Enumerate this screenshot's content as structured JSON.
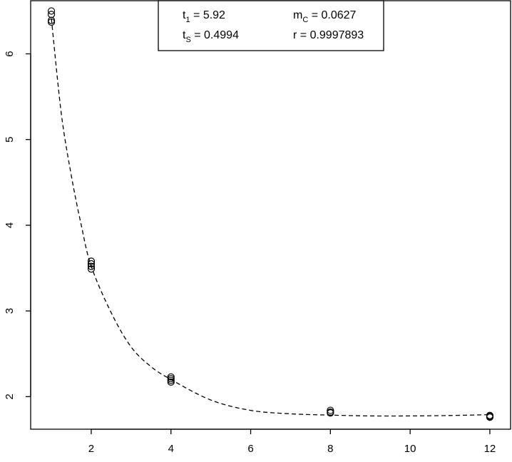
{
  "chart_data": {
    "type": "scatter",
    "title": "",
    "xlabel": "",
    "ylabel": "",
    "xlim": [
      0.48,
      12.52
    ],
    "ylim": [
      1.62,
      6.62
    ],
    "x_ticks": [
      2,
      4,
      6,
      8,
      10,
      12
    ],
    "x_tick_labels": [
      "2",
      "4",
      "6",
      "8",
      "10",
      "12"
    ],
    "y_ticks": [
      2,
      3,
      4,
      5,
      6
    ],
    "y_tick_labels": [
      "2",
      "3",
      "4",
      "5",
      "6"
    ],
    "grid": false,
    "legend": "top-center",
    "series": [
      {
        "marker": "open-circle",
        "color": "#000000",
        "x": [
          1,
          1,
          1,
          1,
          2,
          2,
          2,
          2,
          4,
          4,
          4,
          4,
          8,
          8,
          8,
          12,
          12,
          12
        ],
        "y": [
          6.5,
          6.46,
          6.39,
          6.37,
          3.58,
          3.55,
          3.52,
          3.49,
          2.23,
          2.21,
          2.19,
          2.17,
          1.84,
          1.82,
          1.81,
          1.78,
          1.77,
          1.76
        ]
      },
      {
        "style": "dashed-line",
        "color": "#000000",
        "x": [
          1.0,
          1.25,
          1.5,
          1.75,
          2.0,
          2.5,
          3.0,
          3.5,
          4.0,
          5.0,
          6.0,
          7.0,
          8.0,
          9.0,
          10.0,
          11.0,
          12.0
        ],
        "y": [
          6.41,
          5.3,
          4.58,
          4.0,
          3.52,
          2.98,
          2.58,
          2.35,
          2.2,
          1.96,
          1.84,
          1.8,
          1.785,
          1.775,
          1.775,
          1.78,
          1.79
        ]
      }
    ],
    "annotations": {
      "t1": {
        "symbol": "t",
        "subscript": "1",
        "value": " = 5.92"
      },
      "ts": {
        "symbol": "t",
        "subscript": "S",
        "value": " = 0.4994"
      },
      "mc": {
        "symbol": "m",
        "subscript": "C",
        "value": " = 0.0627"
      },
      "r": {
        "text": "r = 0.9997893"
      }
    }
  }
}
